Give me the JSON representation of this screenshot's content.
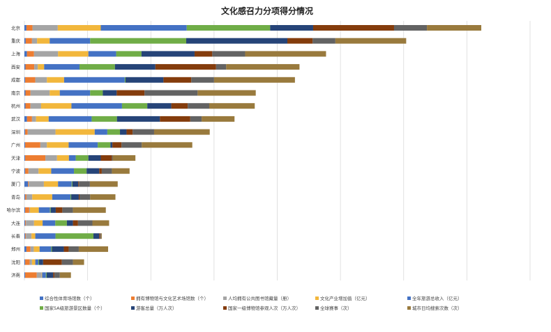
{
  "chart_data": {
    "type": "bar",
    "orientation": "horizontal",
    "stacked": true,
    "title": "文化感召力分项得分情况",
    "xlabel": "",
    "ylabel": "",
    "xlim": [
      0,
      200
    ],
    "grid": true,
    "legend_position": "bottom",
    "categories": [
      "北京",
      "重庆",
      "上海",
      "西安",
      "成都",
      "南京",
      "杭州",
      "武汉",
      "深圳",
      "广州",
      "天津",
      "宁波",
      "厦门",
      "青岛",
      "哈尔滨",
      "大连",
      "长春",
      "郑州",
      "沈阳",
      "济南"
    ],
    "series": [
      {
        "name": "综合性体育场馆数（个）",
        "color": "#4472c4",
        "values": [
          0.8,
          0.5,
          1,
          0.4,
          0.3,
          0.4,
          0.4,
          1,
          0.3,
          0.3,
          0.3,
          0.3,
          1.4,
          0.3,
          0.3,
          0.3,
          0.3,
          0.8,
          0.3,
          0.3
        ]
      },
      {
        "name": "拥有博物馆与文化艺术场馆数（个）",
        "color": "#ed7d31",
        "values": [
          2.4,
          2.5,
          2.8,
          3.5,
          4,
          2,
          2,
          2,
          1,
          6,
          8,
          1.3,
          0.3,
          0.5,
          1.6,
          0.3,
          0.3,
          1.6,
          1.8,
          4.6
        ]
      },
      {
        "name": "人均拥有公共图书馆藏量（册）",
        "color": "#a5a5a5",
        "values": [
          10,
          2,
          9.5,
          1.4,
          4.6,
          7.6,
          4.2,
          1.6,
          11,
          2.6,
          4.6,
          4,
          6,
          2.3,
          0.3,
          3.2,
          2.2,
          1.3,
          0.9,
          1.9
        ]
      },
      {
        "name": "文化产业增加值（亿元）",
        "color": "#f2b73c",
        "values": [
          17,
          5,
          12,
          2.5,
          6.8,
          4,
          12,
          5,
          15.5,
          8.6,
          4.7,
          5,
          5.6,
          7.9,
          3.5,
          3.4,
          1.5,
          2.3,
          1.3,
          0.2
        ]
      },
      {
        "name": "全年旅游总收入（亿元）",
        "color": "#4472c4",
        "values": [
          34,
          16,
          11,
          14,
          24,
          12,
          20,
          17,
          5,
          11.5,
          2.7,
          9,
          5.4,
          7.2,
          4.4,
          5,
          8,
          4.6,
          1.2,
          1.5
        ]
      },
      {
        "name": "国家5A级旅游景区数量（个）",
        "color": "#70ad47",
        "values": [
          33,
          38,
          10,
          14,
          0.3,
          5,
          10,
          10,
          5,
          5,
          5,
          5,
          0.3,
          0.3,
          0.3,
          4.6,
          15,
          0.3,
          0.3,
          0.3
        ]
      },
      {
        "name": "游客总量（万人次）",
        "color": "#264478",
        "values": [
          17,
          40,
          21,
          16,
          15,
          5.5,
          9.5,
          17,
          2.6,
          0.8,
          4.9,
          5,
          2.3,
          3,
          2,
          2.4,
          2.3,
          4.7,
          1.6,
          2.6
        ]
      },
      {
        "name": "国家一级博物馆参观人次（万人次）",
        "color": "#843c0c",
        "values": [
          32,
          10,
          7,
          24,
          11,
          11,
          6.5,
          12,
          2.4,
          3.6,
          4.4,
          1,
          0.3,
          0.3,
          2.6,
          2,
          0.4,
          1.9,
          7.4,
          0.5
        ]
      },
      {
        "name": "全球赛事（次）",
        "color": "#636363",
        "values": [
          13,
          9,
          13,
          4,
          9,
          21,
          8.5,
          4.5,
          8.5,
          8,
          0.3,
          4,
          4.3,
          4.2,
          4.2,
          5.7,
          0.3,
          4,
          4.4,
          2.1
        ]
      },
      {
        "name": "城市日均搜索次数（次）",
        "color": "#997a3d",
        "values": [
          21.5,
          28,
          32,
          29,
          32,
          23,
          18,
          13,
          22,
          20,
          9,
          7,
          11,
          10,
          13,
          6.6,
          0.3,
          11.6,
          4.4,
          4.4
        ]
      }
    ]
  },
  "legend_label_order": [
    0,
    1,
    2,
    3,
    4,
    5,
    6,
    7,
    8,
    9
  ]
}
